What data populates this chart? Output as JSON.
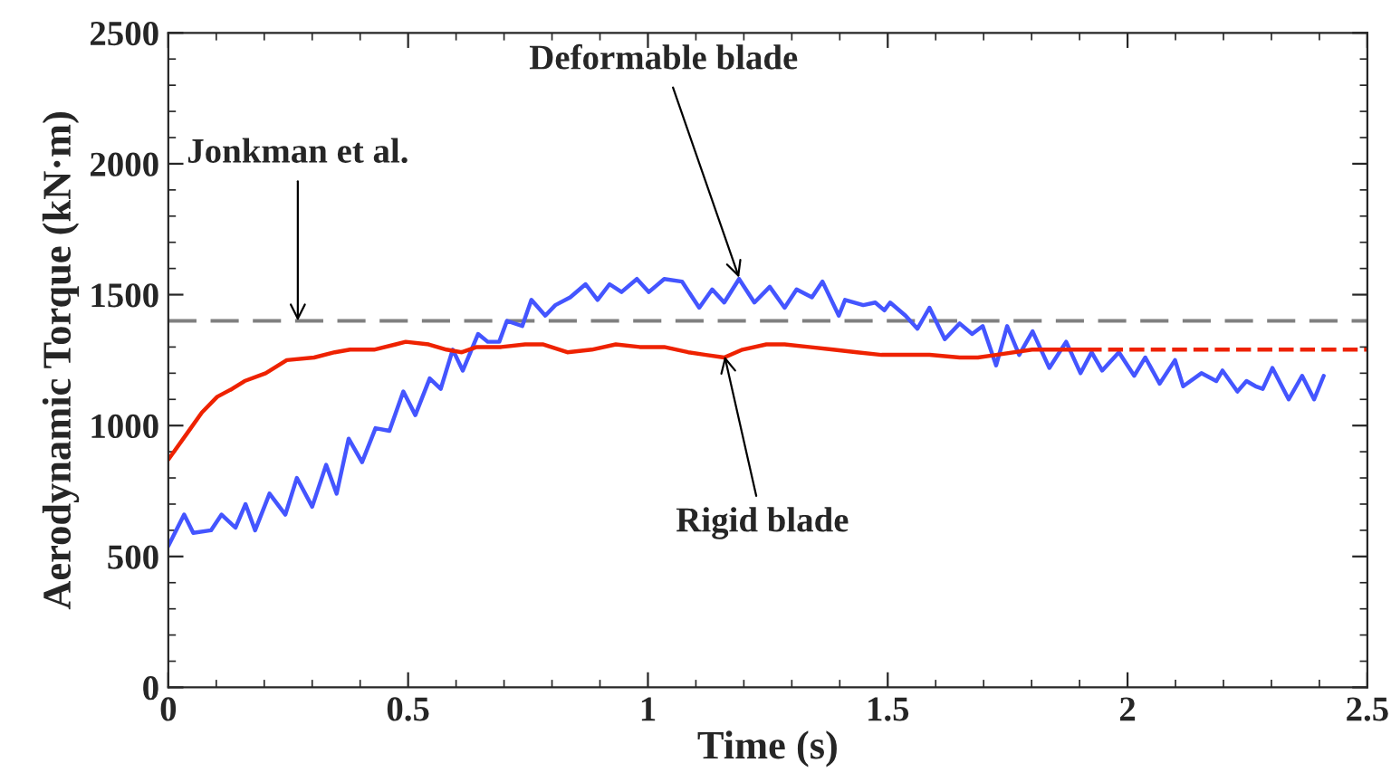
{
  "chart_data": {
    "type": "line",
    "xlabel": "Time (s)",
    "ylabel": "Aerodynamic Torque (kN·m)",
    "xlim": [
      0,
      2.5
    ],
    "xticks": [
      0,
      0.5,
      1,
      1.5,
      2,
      2.5
    ],
    "ylim": [
      0,
      2500
    ],
    "yticks": [
      0,
      500,
      1000,
      1500,
      2000,
      2500
    ],
    "grid": false,
    "legend": false,
    "marker": "none",
    "series": [
      {
        "color": "#4455ff",
        "line_style": "solid",
        "x": [
          0,
          0.033,
          0.052,
          0.089,
          0.111,
          0.14,
          0.161,
          0.181,
          0.211,
          0.244,
          0.268,
          0.3,
          0.329,
          0.351,
          0.376,
          0.404,
          0.432,
          0.461,
          0.49,
          0.515,
          0.545,
          0.568,
          0.593,
          0.614,
          0.646,
          0.666,
          0.69,
          0.706,
          0.738,
          0.757,
          0.786,
          0.807,
          0.838,
          0.87,
          0.895,
          0.92,
          0.945,
          0.977,
          1.002,
          1.034,
          1.071,
          1.107,
          1.134,
          1.159,
          1.19,
          1.222,
          1.254,
          1.285,
          1.31,
          1.342,
          1.364,
          1.398,
          1.411,
          1.449,
          1.474,
          1.493,
          1.505,
          1.537,
          1.562,
          1.587,
          1.619,
          1.65,
          1.676,
          1.698,
          1.726,
          1.749,
          1.774,
          1.802,
          1.837,
          1.872,
          1.902,
          1.925,
          1.947,
          1.982,
          2.014,
          2.037,
          2.067,
          2.099,
          2.116,
          2.154,
          2.185,
          2.198,
          2.229,
          2.248,
          2.267,
          2.282,
          2.302,
          2.336,
          2.364,
          2.389,
          2.409
        ],
        "values": [
          540,
          660,
          590,
          600,
          660,
          610,
          700,
          600,
          740,
          660,
          800,
          690,
          850,
          740,
          950,
          860,
          990,
          980,
          1130,
          1040,
          1180,
          1140,
          1290,
          1210,
          1350,
          1320,
          1320,
          1400,
          1380,
          1480,
          1420,
          1460,
          1490,
          1540,
          1480,
          1540,
          1510,
          1560,
          1510,
          1560,
          1550,
          1450,
          1520,
          1470,
          1560,
          1470,
          1530,
          1450,
          1520,
          1490,
          1550,
          1420,
          1480,
          1460,
          1470,
          1440,
          1470,
          1420,
          1370,
          1450,
          1330,
          1390,
          1350,
          1380,
          1230,
          1380,
          1270,
          1360,
          1220,
          1320,
          1200,
          1280,
          1210,
          1280,
          1190,
          1260,
          1160,
          1250,
          1150,
          1200,
          1170,
          1210,
          1130,
          1170,
          1150,
          1140,
          1220,
          1100,
          1190,
          1100,
          1190
        ]
      },
      {
        "color": "#ee2200",
        "line_style": "solid",
        "x": [
          0,
          0.039,
          0.07,
          0.102,
          0.133,
          0.159,
          0.203,
          0.247,
          0.304,
          0.347,
          0.379,
          0.429,
          0.474,
          0.495,
          0.543,
          0.58,
          0.612,
          0.643,
          0.694,
          0.744,
          0.782,
          0.832,
          0.883,
          0.933,
          0.983,
          1.034,
          1.084,
          1.121,
          1.159,
          1.197,
          1.247,
          1.285,
          1.336,
          1.386,
          1.436,
          1.487,
          1.537,
          1.587,
          1.65,
          1.688,
          1.726,
          1.801,
          1.915
        ],
        "values": [
          870,
          970,
          1050,
          1110,
          1140,
          1170,
          1200,
          1250,
          1260,
          1280,
          1290,
          1290,
          1310,
          1320,
          1310,
          1290,
          1280,
          1300,
          1300,
          1310,
          1310,
          1280,
          1290,
          1310,
          1300,
          1300,
          1280,
          1270,
          1260,
          1290,
          1310,
          1310,
          1300,
          1290,
          1280,
          1270,
          1270,
          1270,
          1260,
          1260,
          1270,
          1290,
          1290
        ]
      },
      {
        "color": "#ee2200",
        "line_style": "dashed",
        "x": [
          1.915,
          2.5
        ],
        "values": [
          1290,
          1290
        ]
      }
    ],
    "ref_lines": [
      {
        "axis": "y",
        "value": 1400,
        "color": "#808080",
        "line_style": "dashed"
      }
    ],
    "annotations": [
      {
        "text": "Jonkman et al.",
        "x": 0.27,
        "y": 1400
      },
      {
        "text": "Deformable blade",
        "x": 1.19,
        "y": 1565
      },
      {
        "text": "Rigid blade",
        "x": 1.16,
        "y": 1265
      }
    ]
  }
}
